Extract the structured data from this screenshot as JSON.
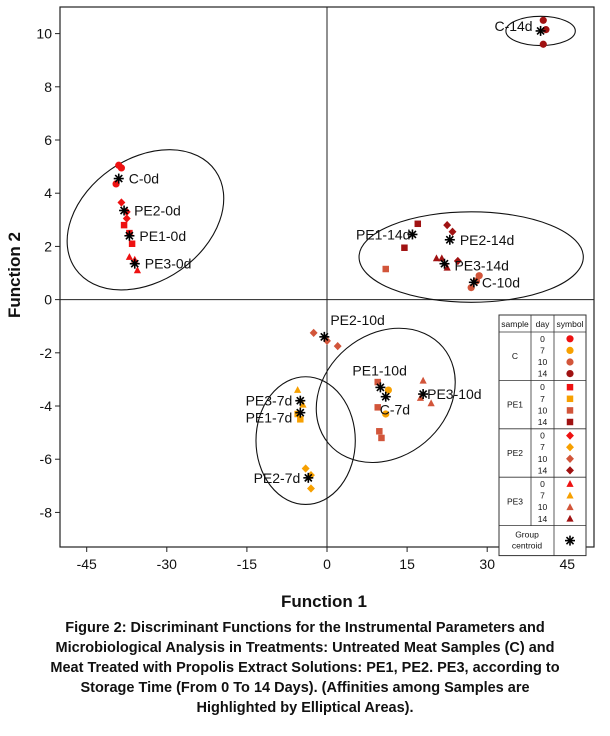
{
  "chart_data": {
    "type": "scatter",
    "xlabel": "Function 1",
    "ylabel": "Function 2",
    "xlim": [
      -50,
      50
    ],
    "ylim": [
      -9.3,
      11
    ],
    "xticks": [
      -45,
      -30,
      -15,
      0,
      15,
      30,
      45
    ],
    "yticks": [
      -8,
      -6,
      -4,
      -2,
      0,
      2,
      4,
      6,
      8,
      10
    ],
    "grid": false,
    "legend_placement": "bottom-right",
    "legend": {
      "headers": [
        "sample",
        "day",
        "symbol"
      ],
      "groups": [
        {
          "sample": "C",
          "marker": "circle",
          "days": [
            "0",
            "7",
            "10",
            "14"
          ]
        },
        {
          "sample": "PE1",
          "marker": "square",
          "days": [
            "0",
            "7",
            "10",
            "14"
          ]
        },
        {
          "sample": "PE2",
          "marker": "diamond",
          "days": [
            "0",
            "7",
            "10",
            "14"
          ]
        },
        {
          "sample": "PE3",
          "marker": "triangle",
          "days": [
            "0",
            "7",
            "10",
            "14"
          ]
        }
      ],
      "centroid_label_lines": [
        "Group",
        "centroid"
      ]
    },
    "day_colors": {
      "0": "#ee1111",
      "7": "#f7a000",
      "10": "#d2553a",
      "14": "#a01212"
    },
    "centroid_color": "#000000",
    "centroids": [
      {
        "label": "C-0d",
        "x": -39,
        "y": 4.55
      },
      {
        "label": "PE2-0d",
        "x": -38,
        "y": 3.35
      },
      {
        "label": "PE1-0d",
        "x": -37,
        "y": 2.4
      },
      {
        "label": "PE3-0d",
        "x": -36,
        "y": 1.35
      },
      {
        "label": "C-14d",
        "x": 40,
        "y": 10.1
      },
      {
        "label": "PE1-14d",
        "x": 16,
        "y": 2.45
      },
      {
        "label": "PE2-14d",
        "x": 23,
        "y": 2.25
      },
      {
        "label": "PE3-14d",
        "x": 22,
        "y": 1.35
      },
      {
        "label": "C-10d",
        "x": 27.5,
        "y": 0.65
      },
      {
        "label": "PE2-10d",
        "x": -0.5,
        "y": -1.4
      },
      {
        "label": "PE1-10d",
        "x": 10,
        "y": -3.3
      },
      {
        "label": "C-7d",
        "x": 11,
        "y": -3.65
      },
      {
        "label": "PE3-10d",
        "x": 18,
        "y": -3.55
      },
      {
        "label": "PE3-7d",
        "x": -5,
        "y": -3.8
      },
      {
        "label": "PE1-7d",
        "x": -5,
        "y": -4.25
      },
      {
        "label": "PE2-7d",
        "x": -3.5,
        "y": -6.7
      }
    ],
    "points": [
      {
        "sample": "C",
        "day": "0",
        "x": -39,
        "y": 5.05
      },
      {
        "sample": "C",
        "day": "0",
        "x": -38.5,
        "y": 4.95
      },
      {
        "sample": "C",
        "day": "0",
        "x": -39.5,
        "y": 4.35
      },
      {
        "sample": "PE2",
        "day": "0",
        "x": -38.5,
        "y": 3.65
      },
      {
        "sample": "PE2",
        "day": "0",
        "x": -37.5,
        "y": 3.3
      },
      {
        "sample": "PE2",
        "day": "0",
        "x": -37.5,
        "y": 3.05
      },
      {
        "sample": "PE1",
        "day": "0",
        "x": -38,
        "y": 2.8
      },
      {
        "sample": "PE1",
        "day": "0",
        "x": -37,
        "y": 2.5
      },
      {
        "sample": "PE1",
        "day": "0",
        "x": -36.5,
        "y": 2.1
      },
      {
        "sample": "PE3",
        "day": "0",
        "x": -37,
        "y": 1.6
      },
      {
        "sample": "PE3",
        "day": "0",
        "x": -36,
        "y": 1.5
      },
      {
        "sample": "PE3",
        "day": "0",
        "x": -35.5,
        "y": 1.1
      },
      {
        "sample": "C",
        "day": "14",
        "x": 40.5,
        "y": 10.5
      },
      {
        "sample": "C",
        "day": "14",
        "x": 41,
        "y": 10.15
      },
      {
        "sample": "C",
        "day": "14",
        "x": 40.5,
        "y": 9.6
      },
      {
        "sample": "PE1",
        "day": "14",
        "x": 17,
        "y": 2.85
      },
      {
        "sample": "PE1",
        "day": "14",
        "x": 14.5,
        "y": 1.95
      },
      {
        "sample": "PE1",
        "day": "10",
        "x": 11,
        "y": 1.15
      },
      {
        "sample": "PE2",
        "day": "14",
        "x": 22.5,
        "y": 2.8
      },
      {
        "sample": "PE2",
        "day": "14",
        "x": 23.5,
        "y": 2.55
      },
      {
        "sample": "PE2",
        "day": "14",
        "x": 24.5,
        "y": 1.45
      },
      {
        "sample": "PE3",
        "day": "14",
        "x": 20.5,
        "y": 1.55
      },
      {
        "sample": "PE3",
        "day": "14",
        "x": 21.5,
        "y": 1.55
      },
      {
        "sample": "PE3",
        "day": "14",
        "x": 22.5,
        "y": 1.2
      },
      {
        "sample": "C",
        "day": "10",
        "x": 27,
        "y": 0.45
      },
      {
        "sample": "C",
        "day": "10",
        "x": 28.5,
        "y": 0.9
      },
      {
        "sample": "C",
        "day": "10",
        "x": 28,
        "y": 0.7
      },
      {
        "sample": "PE2",
        "day": "10",
        "x": -2.5,
        "y": -1.25
      },
      {
        "sample": "PE2",
        "day": "10",
        "x": 2,
        "y": -1.75
      },
      {
        "sample": "PE2",
        "day": "10",
        "x": 0,
        "y": -1.55
      },
      {
        "sample": "PE1",
        "day": "10",
        "x": 9.5,
        "y": -3.1
      },
      {
        "sample": "PE1",
        "day": "10",
        "x": 9.5,
        "y": -4.05
      },
      {
        "sample": "PE1",
        "day": "10",
        "x": 9.8,
        "y": -4.95
      },
      {
        "sample": "PE1",
        "day": "10",
        "x": 10.2,
        "y": -5.2
      },
      {
        "sample": "C",
        "day": "7",
        "x": 11,
        "y": -4.3
      },
      {
        "sample": "C",
        "day": "7",
        "x": 11.5,
        "y": -3.4
      },
      {
        "sample": "PE3",
        "day": "10",
        "x": 18,
        "y": -3.05
      },
      {
        "sample": "PE3",
        "day": "10",
        "x": 19.5,
        "y": -3.9
      },
      {
        "sample": "PE3",
        "day": "10",
        "x": 17.5,
        "y": -3.7
      },
      {
        "sample": "PE3",
        "day": "7",
        "x": -5.5,
        "y": -3.4
      },
      {
        "sample": "PE3",
        "day": "7",
        "x": -4.5,
        "y": -3.95
      },
      {
        "sample": "PE1",
        "day": "7",
        "x": -5,
        "y": -4.5
      },
      {
        "sample": "PE1",
        "day": "7",
        "x": -5.5,
        "y": -4.3
      },
      {
        "sample": "PE2",
        "day": "7",
        "x": -4,
        "y": -6.35
      },
      {
        "sample": "PE2",
        "day": "7",
        "x": -3,
        "y": -6.6
      },
      {
        "sample": "PE2",
        "day": "7",
        "x": -3,
        "y": -7.1
      }
    ],
    "ellipses": [
      {
        "name": "day-0-group",
        "cx": -34,
        "cy": 3.0,
        "rx": 16,
        "ry": 2.3,
        "angle_deg": -35
      },
      {
        "name": "day-14-10-group",
        "cx": 27,
        "cy": 1.6,
        "rx": 21,
        "ry": 1.7,
        "angle_deg": 0
      },
      {
        "name": "day-10-7-group",
        "cx": 11,
        "cy": -3.6,
        "rx": 14,
        "ry": 2.3,
        "angle_deg": -40
      },
      {
        "name": "day-7-group",
        "cx": -4,
        "cy": -5.3,
        "rx": 9.3,
        "ry": 2.4,
        "angle_deg": 0
      },
      {
        "name": "c-14d-group",
        "cx": 40,
        "cy": 10.1,
        "rx": 6.5,
        "ry": 0.55,
        "angle_deg": 0
      }
    ]
  },
  "caption_lines": [
    "Figure 2: Discriminant Functions for the Instrumental Parameters and",
    "Microbiological Analysis in Treatments: Untreated Meat Samples (C) and",
    "Meat Treated with Propolis Extract Solutions: PE1, PE2. PE3, according to",
    "Storage Time (From 0 To 14 Days). (Affinities among Samples are",
    "Highlighted by Elliptical Areas)."
  ]
}
